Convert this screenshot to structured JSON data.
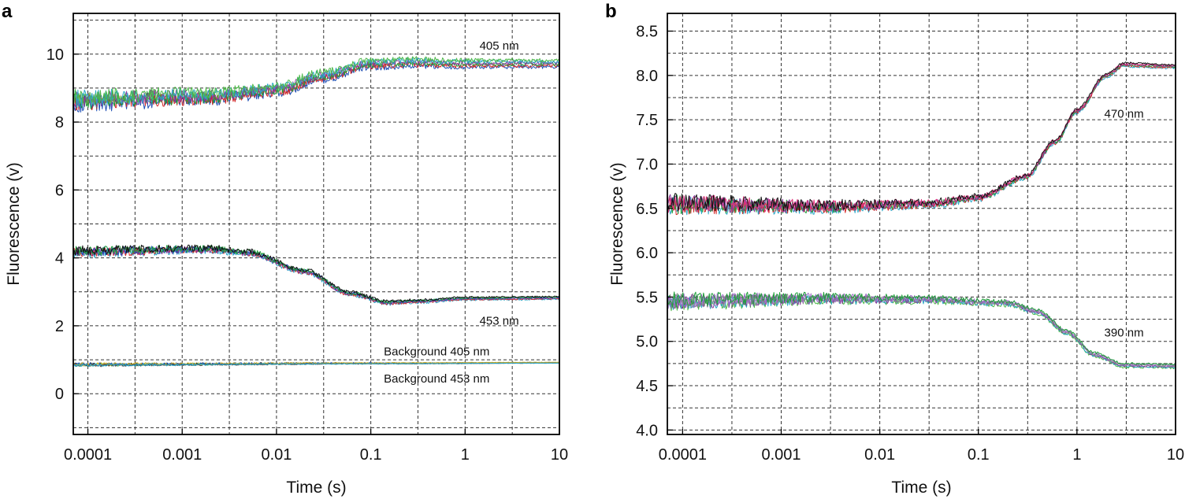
{
  "chart_data": [
    {
      "type": "line",
      "panel": "a",
      "xlabel": "Time (s)",
      "ylabel": "Fluorescence (v)",
      "xscale": "log",
      "xlim": [
        7e-05,
        10
      ],
      "ylim": [
        -1.2,
        11.2
      ],
      "xticks": [
        {
          "value": 0.0001,
          "label": "0.0001"
        },
        {
          "value": 0.001,
          "label": "0.001"
        },
        {
          "value": 0.01,
          "label": "0.01"
        },
        {
          "value": 0.1,
          "label": "0.1"
        },
        {
          "value": 1,
          "label": "1"
        },
        {
          "value": 10,
          "label": "10"
        }
      ],
      "yticks": [
        {
          "value": 0,
          "label": "0"
        },
        {
          "value": 2,
          "label": "2"
        },
        {
          "value": 4,
          "label": "4"
        },
        {
          "value": 6,
          "label": "6"
        },
        {
          "value": 8,
          "label": "8"
        },
        {
          "value": 10,
          "label": "10"
        }
      ],
      "annotations": [
        {
          "text": "405 nm",
          "x": 2.3,
          "y": 10.25
        },
        {
          "text": "453 nm",
          "x": 2.3,
          "y": 2.15
        },
        {
          "text": "Background 405 nm",
          "x": 0.5,
          "y": 1.25
        },
        {
          "text": "Background 453 nm",
          "x": 0.5,
          "y": 0.45
        }
      ],
      "groups": [
        {
          "name": "405 nm",
          "colors": [
            "#1f4fb4",
            "#d42a2a",
            "#1f9e3a",
            "#8a3b9e",
            "#2aa8c8",
            "#4cb848"
          ],
          "noise_early": 0.22,
          "noise_late": 0.05,
          "points": [
            [
              7e-05,
              8.65
            ],
            [
              0.002,
              8.75
            ],
            [
              0.01,
              8.95
            ],
            [
              0.03,
              9.35
            ],
            [
              0.1,
              9.72
            ],
            [
              0.3,
              9.75
            ],
            [
              1,
              9.72
            ],
            [
              10,
              9.72
            ]
          ]
        },
        {
          "name": "453 nm",
          "colors": [
            "#2aa8c8",
            "#d42a2a",
            "#8a3b9e",
            "#1f4fb4",
            "#1f9e3a",
            "#111111"
          ],
          "noise_early": 0.13,
          "noise_late": 0.02,
          "points": [
            [
              7e-05,
              4.18
            ],
            [
              0.002,
              4.25
            ],
            [
              0.005,
              4.15
            ],
            [
              0.02,
              3.6
            ],
            [
              0.06,
              2.95
            ],
            [
              0.15,
              2.68
            ],
            [
              0.3,
              2.72
            ],
            [
              1,
              2.8
            ],
            [
              10,
              2.82
            ]
          ]
        },
        {
          "name": "Background 405 nm",
          "colors": [
            "#4cb848",
            "#111111",
            "#1f4fb4",
            "#d4b020"
          ],
          "noise_early": 0.05,
          "noise_late": 0.005,
          "points": [
            [
              7e-05,
              0.86
            ],
            [
              0.1,
              0.9
            ],
            [
              10,
              0.92
            ]
          ]
        },
        {
          "name": "Background 453 nm",
          "colors": [
            "#555555",
            "#2aa8c8"
          ],
          "noise_early": 0.04,
          "noise_late": 0.004,
          "points": [
            [
              7e-05,
              0.84
            ],
            [
              0.1,
              0.88
            ],
            [
              10,
              0.9
            ]
          ]
        }
      ]
    },
    {
      "type": "line",
      "panel": "b",
      "xlabel": "Time (s)",
      "ylabel": "Fluorescence (v)",
      "xscale": "log",
      "xlim": [
        7e-05,
        10
      ],
      "ylim": [
        3.95,
        8.7
      ],
      "xticks": [
        {
          "value": 0.0001,
          "label": "0.0001"
        },
        {
          "value": 0.001,
          "label": "0.001"
        },
        {
          "value": 0.01,
          "label": "0.01"
        },
        {
          "value": 0.1,
          "label": "0.1"
        },
        {
          "value": 1,
          "label": "1"
        },
        {
          "value": 10,
          "label": "10"
        }
      ],
      "yticks": [
        {
          "value": 4.0,
          "label": "4.0"
        },
        {
          "value": 4.5,
          "label": "4.5"
        },
        {
          "value": 5.0,
          "label": "5.0"
        },
        {
          "value": 5.5,
          "label": "5.5"
        },
        {
          "value": 6.0,
          "label": "6.0"
        },
        {
          "value": 6.5,
          "label": "6.5"
        },
        {
          "value": 7.0,
          "label": "7.0"
        },
        {
          "value": 7.5,
          "label": "7.5"
        },
        {
          "value": 8.0,
          "label": "8.0"
        },
        {
          "value": 8.5,
          "label": "8.5"
        }
      ],
      "annotations": [
        {
          "text": "470 nm",
          "x": 3.0,
          "y": 7.57
        },
        {
          "text": "390 nm",
          "x": 3.0,
          "y": 5.1
        }
      ],
      "groups": [
        {
          "name": "470 nm",
          "colors": [
            "#2aa8c8",
            "#d42a2a",
            "#1f9e3a",
            "#8a3b9e",
            "#e0307a",
            "#111111"
          ],
          "noise_early": 0.1,
          "noise_late": 0.01,
          "points": [
            [
              7e-05,
              6.55
            ],
            [
              0.003,
              6.52
            ],
            [
              0.03,
              6.55
            ],
            [
              0.1,
              6.62
            ],
            [
              0.3,
              6.85
            ],
            [
              0.6,
              7.25
            ],
            [
              1,
              7.6
            ],
            [
              2,
              8.0
            ],
            [
              3,
              8.12
            ],
            [
              10,
              8.1
            ]
          ]
        },
        {
          "name": "390 nm",
          "colors": [
            "#4cb848",
            "#2aa8c8",
            "#8a3b9e",
            "#888888",
            "#a070c8",
            "#1f9e3a"
          ],
          "noise_early": 0.08,
          "noise_late": 0.01,
          "points": [
            [
              7e-05,
              5.45
            ],
            [
              0.003,
              5.48
            ],
            [
              0.03,
              5.47
            ],
            [
              0.2,
              5.43
            ],
            [
              0.4,
              5.33
            ],
            [
              0.8,
              5.1
            ],
            [
              1.5,
              4.85
            ],
            [
              3,
              4.73
            ],
            [
              10,
              4.72
            ]
          ]
        }
      ]
    }
  ],
  "panel_labels": {
    "a": "a",
    "b": "b"
  }
}
